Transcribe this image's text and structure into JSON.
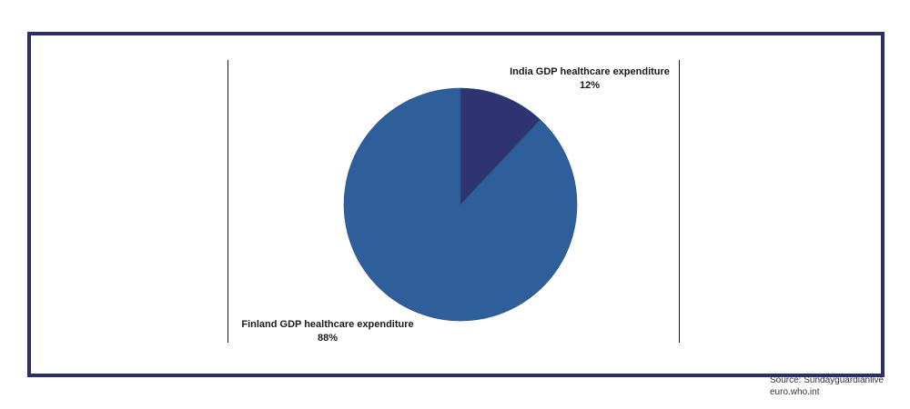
{
  "chart_data": {
    "type": "pie",
    "title": "",
    "slices": [
      {
        "name": "India GDP healthcare expenditure",
        "value": 12,
        "label": "12%",
        "color": "#2e3470"
      },
      {
        "name": "Finland GDP healthcare expenditure",
        "value": 88,
        "label": "88%",
        "color": "#2e5f9a"
      }
    ],
    "start_angle_deg": 0,
    "direction": "clockwise",
    "legend": "none"
  },
  "source": {
    "line1": "Source: Sundayguardianlive",
    "line2": "euro.who.int"
  },
  "colors": {
    "frame": "#2b2f63",
    "divider": "#1a1a1a"
  }
}
